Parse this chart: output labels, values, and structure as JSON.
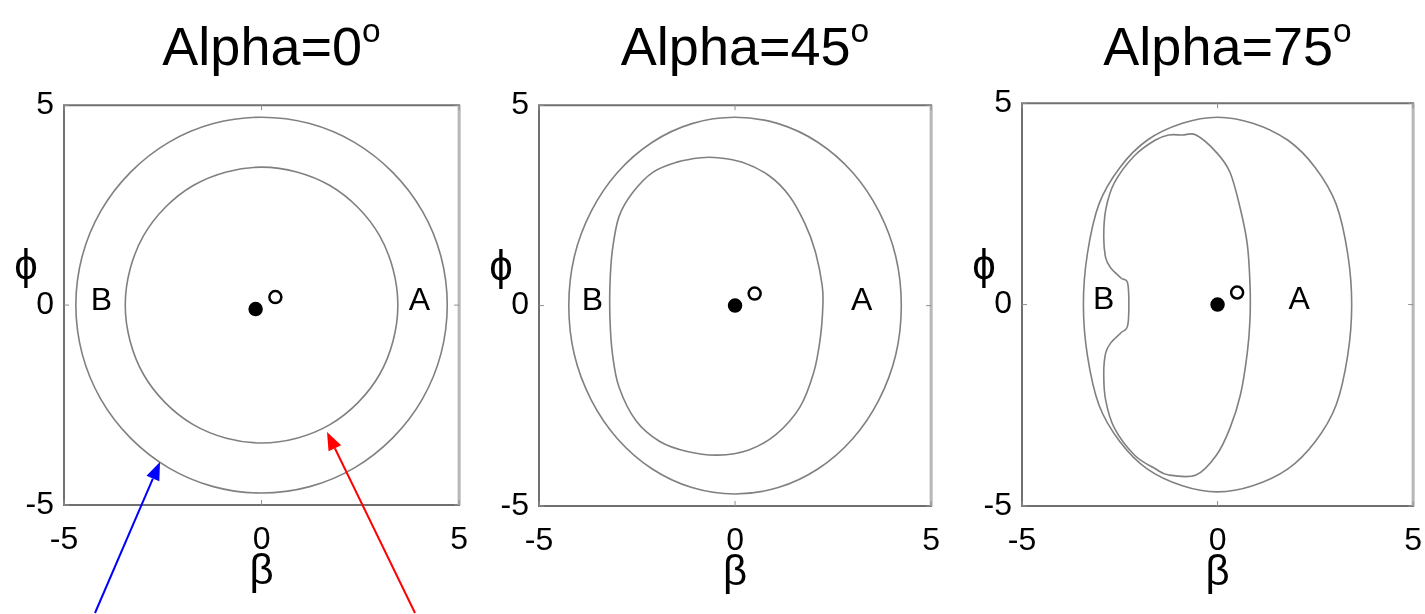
{
  "chart_data": [
    {
      "type": "scatter",
      "title": "Alpha=0$^{o}$",
      "xlabel": "β",
      "ylabel": "ϕ",
      "xlim": [
        -5,
        5
      ],
      "ylim": [
        -5,
        5
      ],
      "xticks": [
        -5,
        0,
        5
      ],
      "yticks": [
        -5,
        0,
        5
      ],
      "marker": "circle",
      "series": [
        {
          "color": "#000000",
          "x": [
            -0.15
          ],
          "values": [
            -0.1
          ]
        },
        {
          "color": "#ffffff",
          "x": [
            0.35
          ],
          "values": [
            0.2
          ]
        }
      ],
      "annotations": [
        "B",
        "A"
      ]
    },
    {
      "type": "scatter",
      "title": "Alpha=45$^{o}$",
      "xlabel": "β",
      "ylabel": "ϕ",
      "xlim": [
        -5,
        5
      ],
      "ylim": [
        -5,
        5
      ],
      "xticks": [
        -5,
        0,
        5
      ],
      "yticks": [
        -5,
        0,
        5
      ],
      "marker": "circle",
      "series": [
        {
          "color": "#000000",
          "x": [
            0
          ],
          "values": [
            0
          ]
        },
        {
          "color": "#ffffff",
          "x": [
            0.5
          ],
          "values": [
            0.3
          ]
        }
      ],
      "annotations": [
        "B",
        "A"
      ]
    },
    {
      "type": "scatter",
      "title": "Alpha=75$^{o}$",
      "xlabel": "β",
      "ylabel": "ϕ",
      "xlim": [
        -5,
        5
      ],
      "ylim": [
        -5,
        5
      ],
      "xticks": [
        -5,
        0,
        5
      ],
      "yticks": [
        -5,
        0,
        5
      ],
      "marker": "circle",
      "series": [
        {
          "color": "#000000",
          "x": [
            0
          ],
          "values": [
            0
          ]
        },
        {
          "color": "#ffffff",
          "x": [
            0.5
          ],
          "values": [
            0.3
          ]
        }
      ],
      "annotations": [
        "B",
        "A"
      ]
    }
  ]
}
